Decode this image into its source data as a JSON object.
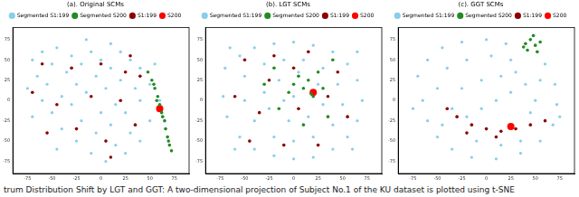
{
  "caption": "trum Distribution Shift by LGT and GGT: A two-dimensional projection of Subject No.1 of the KU dataset is plotted using t-SNE",
  "chart_data": [
    {
      "type": "scatter",
      "title": "(a). Original SCMs",
      "legend": "top",
      "grid": false,
      "xlim": [
        -90,
        90
      ],
      "xticks": [
        -75,
        -50,
        -25,
        0,
        25,
        50,
        75
      ],
      "ylim": [
        -90,
        90
      ],
      "yticks": [
        -75,
        -50,
        -25,
        0,
        25,
        50,
        75
      ],
      "series": [
        {
          "name": "Segmented S1:199",
          "color": "#87ceeb",
          "marker": "circle",
          "values": [
            [
              -70,
              50
            ],
            [
              -60,
              60
            ],
            [
              -50,
              45
            ],
            [
              -65,
              30
            ],
            [
              -45,
              65
            ],
            [
              -30,
              55
            ],
            [
              -35,
              35
            ],
            [
              -55,
              20
            ],
            [
              -20,
              45
            ],
            [
              -10,
              60
            ],
            [
              0,
              50
            ],
            [
              10,
              40
            ],
            [
              -5,
              30
            ],
            [
              -25,
              20
            ],
            [
              -40,
              5
            ],
            [
              -60,
              0
            ],
            [
              -50,
              -15
            ],
            [
              -30,
              -5
            ],
            [
              -15,
              10
            ],
            [
              5,
              15
            ],
            [
              20,
              25
            ],
            [
              30,
              50
            ],
            [
              20,
              60
            ],
            [
              40,
              40
            ],
            [
              35,
              15
            ],
            [
              15,
              -5
            ],
            [
              0,
              -15
            ],
            [
              -20,
              -25
            ],
            [
              -40,
              -35
            ],
            [
              -25,
              -50
            ],
            [
              -5,
              -40
            ],
            [
              10,
              -30
            ],
            [
              25,
              -15
            ],
            [
              40,
              0
            ],
            [
              30,
              -40
            ],
            [
              15,
              -55
            ],
            [
              -10,
              -65
            ],
            [
              5,
              -75
            ],
            [
              25,
              -65
            ],
            [
              40,
              -50
            ],
            [
              50,
              20
            ],
            [
              55,
              45
            ],
            [
              -75,
              15
            ],
            [
              -70,
              -20
            ],
            [
              -45,
              -60
            ],
            [
              60,
              0
            ],
            [
              50,
              -25
            ],
            [
              -15,
              75
            ],
            [
              10,
              70
            ]
          ]
        },
        {
          "name": "Segmented S200",
          "color": "#228b22",
          "marker": "circle",
          "values": [
            [
              48,
              35
            ],
            [
              52,
              25
            ],
            [
              55,
              15
            ],
            [
              58,
              5
            ],
            [
              60,
              -5
            ],
            [
              62,
              -15
            ],
            [
              65,
              -25
            ],
            [
              66,
              -35
            ],
            [
              68,
              -45
            ],
            [
              70,
              -55
            ],
            [
              72,
              -62
            ],
            [
              63,
              -20
            ],
            [
              57,
              0
            ],
            [
              69,
              -50
            ],
            [
              54,
              20
            ]
          ]
        },
        {
          "name": "S1:199",
          "color": "#8b0000",
          "marker": "circle",
          "values": [
            [
              -60,
              45
            ],
            [
              -30,
              40
            ],
            [
              0,
              45
            ],
            [
              25,
              35
            ],
            [
              -45,
              -5
            ],
            [
              -10,
              5
            ],
            [
              20,
              0
            ],
            [
              -25,
              -35
            ],
            [
              5,
              -50
            ],
            [
              35,
              -30
            ],
            [
              -55,
              -40
            ],
            [
              40,
              30
            ],
            [
              10,
              -70
            ],
            [
              -70,
              10
            ],
            [
              30,
              55
            ]
          ]
        },
        {
          "name": "S200",
          "color": "#ff0000",
          "marker": "circle",
          "values": [
            [
              60,
              -10
            ]
          ]
        }
      ]
    },
    {
      "type": "scatter",
      "title": "(b). LGT SCMs",
      "legend": "top",
      "grid": false,
      "xlim": [
        -90,
        90
      ],
      "xticks": [
        -75,
        -50,
        -25,
        0,
        25,
        50,
        75
      ],
      "ylim": [
        -90,
        90
      ],
      "yticks": [
        -75,
        -50,
        -25,
        0,
        25,
        50,
        75
      ],
      "series": [
        {
          "name": "Segmented S1:199",
          "color": "#87ceeb",
          "marker": "circle",
          "values": [
            [
              -70,
              40
            ],
            [
              -55,
              55
            ],
            [
              -40,
              65
            ],
            [
              -20,
              70
            ],
            [
              0,
              72
            ],
            [
              20,
              68
            ],
            [
              40,
              60
            ],
            [
              55,
              45
            ],
            [
              65,
              25
            ],
            [
              70,
              0
            ],
            [
              65,
              -25
            ],
            [
              55,
              -45
            ],
            [
              40,
              -60
            ],
            [
              20,
              -70
            ],
            [
              0,
              -72
            ],
            [
              -20,
              -68
            ],
            [
              -40,
              -60
            ],
            [
              -55,
              -45
            ],
            [
              -68,
              -20
            ],
            [
              -72,
              5
            ],
            [
              -50,
              30
            ],
            [
              -30,
              45
            ],
            [
              -10,
              50
            ],
            [
              10,
              50
            ],
            [
              30,
              40
            ],
            [
              45,
              20
            ],
            [
              50,
              -5
            ],
            [
              40,
              -30
            ],
            [
              20,
              -45
            ],
            [
              0,
              -50
            ],
            [
              -20,
              -45
            ],
            [
              -40,
              -25
            ],
            [
              -50,
              0
            ],
            [
              -30,
              10
            ],
            [
              -15,
              25
            ],
            [
              5,
              35
            ],
            [
              25,
              20
            ],
            [
              30,
              -5
            ],
            [
              15,
              -20
            ],
            [
              -5,
              -25
            ],
            [
              -25,
              -10
            ],
            [
              -10,
              0
            ],
            [
              0,
              5
            ],
            [
              60,
              -60
            ],
            [
              -60,
              -60
            ],
            [
              -65,
              65
            ],
            [
              65,
              60
            ]
          ]
        },
        {
          "name": "Segmented S200",
          "color": "#228b22",
          "marker": "circle",
          "values": [
            [
              0,
              20
            ],
            [
              5,
              30
            ],
            [
              10,
              15
            ],
            [
              15,
              25
            ],
            [
              20,
              5
            ],
            [
              -5,
              10
            ],
            [
              25,
              35
            ],
            [
              30,
              15
            ],
            [
              -20,
              40
            ],
            [
              -15,
              -10
            ],
            [
              35,
              -20
            ],
            [
              40,
              50
            ],
            [
              10,
              -30
            ],
            [
              -30,
              20
            ],
            [
              18,
              8
            ]
          ]
        },
        {
          "name": "S1:199",
          "color": "#8b0000",
          "marker": "circle",
          "values": [
            [
              -50,
              50
            ],
            [
              -20,
              55
            ],
            [
              15,
              60
            ],
            [
              45,
              35
            ],
            [
              -60,
              5
            ],
            [
              -35,
              -15
            ],
            [
              5,
              -10
            ],
            [
              35,
              5
            ],
            [
              -45,
              -50
            ],
            [
              -10,
              -55
            ],
            [
              25,
              -55
            ],
            [
              55,
              -20
            ],
            [
              -25,
              25
            ],
            [
              0,
              40
            ]
          ]
        },
        {
          "name": "S200",
          "color": "#ff0000",
          "marker": "circle",
          "values": [
            [
              20,
              10
            ]
          ]
        }
      ]
    },
    {
      "type": "scatter",
      "title": "(c). GGT SCMs",
      "legend": "top",
      "grid": false,
      "xlim": [
        -90,
        90
      ],
      "xticks": [
        -75,
        -50,
        -25,
        0,
        25,
        50,
        75
      ],
      "ylim": [
        -90,
        90
      ],
      "yticks": [
        -75,
        -50,
        -25,
        0,
        25,
        50,
        75
      ],
      "series": [
        {
          "name": "Segmented S1:199",
          "color": "#87ceeb",
          "marker": "circle",
          "values": [
            [
              -70,
              30
            ],
            [
              -60,
              50
            ],
            [
              -45,
              65
            ],
            [
              -25,
              72
            ],
            [
              0,
              75
            ],
            [
              20,
              70
            ],
            [
              -65,
              0
            ],
            [
              -60,
              -25
            ],
            [
              -50,
              -45
            ],
            [
              -35,
              -60
            ],
            [
              -15,
              -70
            ],
            [
              10,
              -72
            ],
            [
              35,
              -65
            ],
            [
              55,
              -50
            ],
            [
              68,
              -30
            ],
            [
              72,
              -5
            ],
            [
              70,
              20
            ],
            [
              60,
              45
            ],
            [
              -40,
              40
            ],
            [
              -20,
              50
            ],
            [
              5,
              55
            ],
            [
              25,
              50
            ],
            [
              -50,
              15
            ],
            [
              -35,
              -10
            ],
            [
              -20,
              -20
            ],
            [
              -5,
              -10
            ],
            [
              10,
              0
            ],
            [
              25,
              10
            ],
            [
              40,
              20
            ],
            [
              50,
              0
            ],
            [
              45,
              -15
            ],
            [
              -25,
              15
            ],
            [
              -5,
              25
            ],
            [
              15,
              30
            ],
            [
              30,
              35
            ],
            [
              -10,
              -50
            ],
            [
              15,
              -55
            ],
            [
              35,
              -50
            ],
            [
              -45,
              -30
            ],
            [
              55,
              25
            ],
            [
              -75,
              -10
            ],
            [
              75,
              -20
            ]
          ]
        },
        {
          "name": "Segmented S200",
          "color": "#228b22",
          "marker": "circle",
          "values": [
            [
              40,
              70
            ],
            [
              45,
              75
            ],
            [
              50,
              68
            ],
            [
              42,
              62
            ],
            [
              55,
              72
            ],
            [
              48,
              80
            ],
            [
              38,
              66
            ],
            [
              52,
              60
            ]
          ]
        },
        {
          "name": "S1:199",
          "color": "#8b0000",
          "marker": "circle",
          "values": [
            [
              -30,
              -20
            ],
            [
              -15,
              -30
            ],
            [
              0,
              -35
            ],
            [
              15,
              -38
            ],
            [
              30,
              -35
            ],
            [
              45,
              -30
            ],
            [
              -40,
              -10
            ],
            [
              10,
              -45
            ],
            [
              60,
              -25
            ],
            [
              -20,
              -40
            ]
          ]
        },
        {
          "name": "S200",
          "color": "#ff0000",
          "marker": "circle",
          "values": [
            [
              25,
              -32
            ]
          ]
        }
      ]
    }
  ]
}
